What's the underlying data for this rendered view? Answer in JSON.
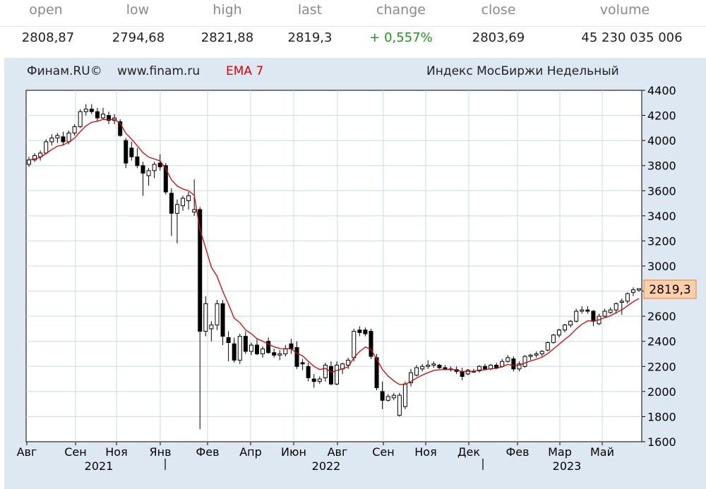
{
  "quote": {
    "headers": [
      "open",
      "low",
      "high",
      "last",
      "change",
      "close",
      "volume"
    ],
    "values": [
      "2808,87",
      "2794,68",
      "2821,88",
      "2819,3",
      "+ 0,557%",
      "2803,69",
      "45 230 035 006"
    ]
  },
  "chart_header": {
    "source": "Финам.RU©",
    "site": "www.finam.ru",
    "indicator": "EMA 7",
    "title": "Индекс МосБиржи Недельный"
  },
  "colors": {
    "up_candle": "#ffffff",
    "down_candle": "#000000",
    "ema": "#e00000",
    "last_label_bg": "#ffd0a8",
    "last_label_border": "#e08040",
    "change_positive": "#1a9a1a",
    "panel_bg": "#dee8f2",
    "grid": "#c8d8ea"
  },
  "chart_data": {
    "type": "candlestick",
    "title": "Индекс МосБиржи Недельный",
    "indicator": "EMA 7",
    "ylim": [
      1600,
      4400
    ],
    "y_ticks": [
      "4400",
      "4200",
      "4000",
      "3800",
      "3600",
      "3400",
      "3200",
      "3000",
      "2800",
      "2600",
      "2400",
      "2200",
      "2000",
      "1800",
      "1600"
    ],
    "x_month_labels": [
      "Авг",
      "Сен",
      "Ноя",
      "Янв",
      "Фев",
      "Апр",
      "Июн",
      "Авг",
      "Сен",
      "Ноя",
      "Дек",
      "Фев",
      "Мар",
      "Май"
    ],
    "x_year_labels": [
      "2021",
      "2022",
      "2023"
    ],
    "last_value_label": "2819,3",
    "grid": true,
    "candles": [
      {
        "o": 3810,
        "h": 3870,
        "l": 3790,
        "c": 3845
      },
      {
        "o": 3845,
        "h": 3900,
        "l": 3830,
        "c": 3880
      },
      {
        "o": 3870,
        "h": 3920,
        "l": 3840,
        "c": 3900
      },
      {
        "o": 3900,
        "h": 4010,
        "l": 3890,
        "c": 3990
      },
      {
        "o": 3990,
        "h": 4050,
        "l": 3960,
        "c": 4020
      },
      {
        "o": 4020,
        "h": 4060,
        "l": 3980,
        "c": 4040
      },
      {
        "o": 4030,
        "h": 4070,
        "l": 3960,
        "c": 3990
      },
      {
        "o": 3990,
        "h": 4080,
        "l": 3970,
        "c": 4060
      },
      {
        "o": 4060,
        "h": 4130,
        "l": 4040,
        "c": 4110
      },
      {
        "o": 4110,
        "h": 4250,
        "l": 4100,
        "c": 4230
      },
      {
        "o": 4230,
        "h": 4290,
        "l": 4200,
        "c": 4250
      },
      {
        "o": 4250,
        "h": 4290,
        "l": 4210,
        "c": 4230
      },
      {
        "o": 4230,
        "h": 4260,
        "l": 4150,
        "c": 4180
      },
      {
        "o": 4180,
        "h": 4260,
        "l": 4170,
        "c": 4210
      },
      {
        "o": 4200,
        "h": 4230,
        "l": 4130,
        "c": 4160
      },
      {
        "o": 4160,
        "h": 4210,
        "l": 4130,
        "c": 4180
      },
      {
        "o": 4150,
        "h": 4170,
        "l": 4030,
        "c": 4040
      },
      {
        "o": 4000,
        "h": 4020,
        "l": 3780,
        "c": 3820
      },
      {
        "o": 3940,
        "h": 3990,
        "l": 3840,
        "c": 3870
      },
      {
        "o": 3870,
        "h": 3940,
        "l": 3780,
        "c": 3800
      },
      {
        "o": 3800,
        "h": 3830,
        "l": 3560,
        "c": 3740
      },
      {
        "o": 3720,
        "h": 3780,
        "l": 3640,
        "c": 3760
      },
      {
        "o": 3760,
        "h": 3830,
        "l": 3700,
        "c": 3810
      },
      {
        "o": 3820,
        "h": 3890,
        "l": 3760,
        "c": 3790
      },
      {
        "o": 3800,
        "h": 3820,
        "l": 3570,
        "c": 3590
      },
      {
        "o": 3580,
        "h": 3620,
        "l": 3240,
        "c": 3420
      },
      {
        "o": 3420,
        "h": 3530,
        "l": 3180,
        "c": 3490
      },
      {
        "o": 3480,
        "h": 3560,
        "l": 3440,
        "c": 3540
      },
      {
        "o": 3520,
        "h": 3590,
        "l": 3450,
        "c": 3560
      },
      {
        "o": 3430,
        "h": 3690,
        "l": 3400,
        "c": 3450
      },
      {
        "o": 3450,
        "h": 3470,
        "l": 1700,
        "c": 2480
      },
      {
        "o": 2480,
        "h": 2760,
        "l": 2440,
        "c": 2700
      },
      {
        "o": 2500,
        "h": 2560,
        "l": 2400,
        "c": 2530
      },
      {
        "o": 2530,
        "h": 2730,
        "l": 2490,
        "c": 2700
      },
      {
        "o": 2700,
        "h": 2730,
        "l": 2370,
        "c": 2440
      },
      {
        "o": 2430,
        "h": 2480,
        "l": 2240,
        "c": 2390
      },
      {
        "o": 2380,
        "h": 2430,
        "l": 2230,
        "c": 2250
      },
      {
        "o": 2250,
        "h": 2460,
        "l": 2220,
        "c": 2440
      },
      {
        "o": 2440,
        "h": 2480,
        "l": 2300,
        "c": 2320
      },
      {
        "o": 2320,
        "h": 2390,
        "l": 2290,
        "c": 2370
      },
      {
        "o": 2370,
        "h": 2420,
        "l": 2290,
        "c": 2300
      },
      {
        "o": 2300,
        "h": 2360,
        "l": 2270,
        "c": 2340
      },
      {
        "o": 2400,
        "h": 2430,
        "l": 2300,
        "c": 2310
      },
      {
        "o": 2310,
        "h": 2340,
        "l": 2270,
        "c": 2290
      },
      {
        "o": 2290,
        "h": 2330,
        "l": 2250,
        "c": 2300
      },
      {
        "o": 2300,
        "h": 2370,
        "l": 2280,
        "c": 2340
      },
      {
        "o": 2380,
        "h": 2420,
        "l": 2300,
        "c": 2340
      },
      {
        "o": 2350,
        "h": 2400,
        "l": 2180,
        "c": 2200
      },
      {
        "o": 2230,
        "h": 2260,
        "l": 2170,
        "c": 2220
      },
      {
        "o": 2200,
        "h": 2230,
        "l": 2080,
        "c": 2110
      },
      {
        "o": 2100,
        "h": 2140,
        "l": 2030,
        "c": 2080
      },
      {
        "o": 2080,
        "h": 2120,
        "l": 2060,
        "c": 2100
      },
      {
        "o": 2110,
        "h": 2230,
        "l": 2080,
        "c": 2210
      },
      {
        "o": 2200,
        "h": 2240,
        "l": 2050,
        "c": 2060
      },
      {
        "o": 2060,
        "h": 2240,
        "l": 2050,
        "c": 2210
      },
      {
        "o": 2180,
        "h": 2230,
        "l": 2140,
        "c": 2220
      },
      {
        "o": 2210,
        "h": 2270,
        "l": 2180,
        "c": 2250
      },
      {
        "o": 2270,
        "h": 2500,
        "l": 2240,
        "c": 2480
      },
      {
        "o": 2490,
        "h": 2520,
        "l": 2440,
        "c": 2470
      },
      {
        "o": 2490,
        "h": 2510,
        "l": 2440,
        "c": 2460
      },
      {
        "o": 2480,
        "h": 2500,
        "l": 2260,
        "c": 2280
      },
      {
        "o": 2270,
        "h": 2300,
        "l": 2010,
        "c": 2030
      },
      {
        "o": 2000,
        "h": 2080,
        "l": 1860,
        "c": 1930
      },
      {
        "o": 1930,
        "h": 1980,
        "l": 1920,
        "c": 1960
      },
      {
        "o": 1950,
        "h": 1990,
        "l": 1930,
        "c": 1970
      },
      {
        "o": 1810,
        "h": 1990,
        "l": 1800,
        "c": 1970
      },
      {
        "o": 1880,
        "h": 2080,
        "l": 1860,
        "c": 2060
      },
      {
        "o": 2070,
        "h": 2180,
        "l": 2040,
        "c": 2150
      },
      {
        "o": 2130,
        "h": 2210,
        "l": 2120,
        "c": 2190
      },
      {
        "o": 2180,
        "h": 2220,
        "l": 2160,
        "c": 2200
      },
      {
        "o": 2200,
        "h": 2250,
        "l": 2180,
        "c": 2210
      },
      {
        "o": 2210,
        "h": 2240,
        "l": 2190,
        "c": 2220
      },
      {
        "o": 2210,
        "h": 2220,
        "l": 2180,
        "c": 2190
      },
      {
        "o": 2190,
        "h": 2210,
        "l": 2170,
        "c": 2180
      },
      {
        "o": 2180,
        "h": 2200,
        "l": 2160,
        "c": 2175
      },
      {
        "o": 2175,
        "h": 2200,
        "l": 2140,
        "c": 2160
      },
      {
        "o": 2160,
        "h": 2190,
        "l": 2090,
        "c": 2120
      },
      {
        "o": 2140,
        "h": 2180,
        "l": 2130,
        "c": 2170
      },
      {
        "o": 2160,
        "h": 2180,
        "l": 2150,
        "c": 2160
      },
      {
        "o": 2165,
        "h": 2210,
        "l": 2150,
        "c": 2200
      },
      {
        "o": 2200,
        "h": 2220,
        "l": 2170,
        "c": 2180
      },
      {
        "o": 2180,
        "h": 2220,
        "l": 2170,
        "c": 2210
      },
      {
        "o": 2210,
        "h": 2230,
        "l": 2180,
        "c": 2190
      },
      {
        "o": 2200,
        "h": 2260,
        "l": 2190,
        "c": 2240
      },
      {
        "o": 2240,
        "h": 2290,
        "l": 2230,
        "c": 2270
      },
      {
        "o": 2260,
        "h": 2280,
        "l": 2160,
        "c": 2180
      },
      {
        "o": 2180,
        "h": 2240,
        "l": 2160,
        "c": 2220
      },
      {
        "o": 2200,
        "h": 2290,
        "l": 2190,
        "c": 2280
      },
      {
        "o": 2280,
        "h": 2300,
        "l": 2250,
        "c": 2290
      },
      {
        "o": 2290,
        "h": 2320,
        "l": 2270,
        "c": 2300
      },
      {
        "o": 2300,
        "h": 2330,
        "l": 2280,
        "c": 2320
      },
      {
        "o": 2330,
        "h": 2400,
        "l": 2320,
        "c": 2390
      },
      {
        "o": 2390,
        "h": 2460,
        "l": 2380,
        "c": 2450
      },
      {
        "o": 2450,
        "h": 2500,
        "l": 2430,
        "c": 2490
      },
      {
        "o": 2490,
        "h": 2540,
        "l": 2470,
        "c": 2530
      },
      {
        "o": 2530,
        "h": 2570,
        "l": 2510,
        "c": 2560
      },
      {
        "o": 2560,
        "h": 2660,
        "l": 2550,
        "c": 2640
      },
      {
        "o": 2640,
        "h": 2680,
        "l": 2620,
        "c": 2650
      },
      {
        "o": 2650,
        "h": 2680,
        "l": 2620,
        "c": 2640
      },
      {
        "o": 2640,
        "h": 2650,
        "l": 2520,
        "c": 2560
      },
      {
        "o": 2540,
        "h": 2620,
        "l": 2530,
        "c": 2600
      },
      {
        "o": 2600,
        "h": 2660,
        "l": 2590,
        "c": 2640
      },
      {
        "o": 2630,
        "h": 2670,
        "l": 2620,
        "c": 2650
      },
      {
        "o": 2650,
        "h": 2710,
        "l": 2620,
        "c": 2700
      },
      {
        "o": 2710,
        "h": 2740,
        "l": 2610,
        "c": 2720
      },
      {
        "o": 2720,
        "h": 2790,
        "l": 2700,
        "c": 2780
      },
      {
        "o": 2790,
        "h": 2830,
        "l": 2760,
        "c": 2810
      },
      {
        "o": 2808.87,
        "h": 2821.88,
        "l": 2794.68,
        "c": 2819.3
      }
    ]
  }
}
